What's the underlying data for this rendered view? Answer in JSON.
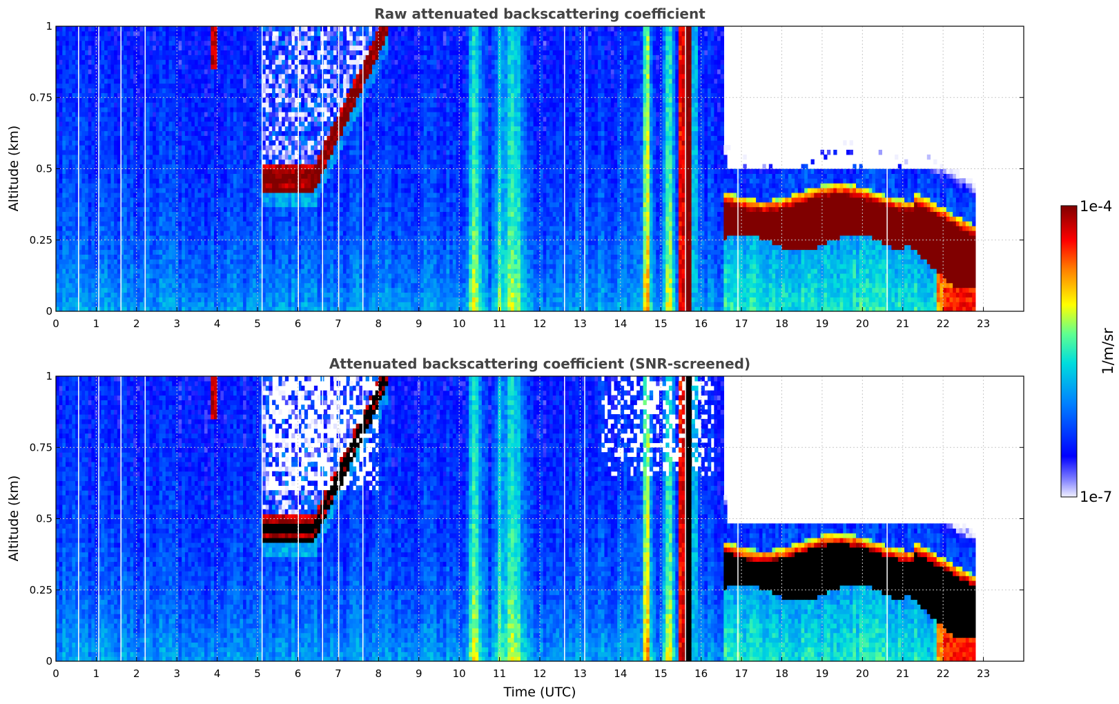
{
  "chart_data": [
    {
      "type": "heatmap",
      "title": "Raw attenuated backscattering coefficient",
      "xlabel": "",
      "ylabel": "Altitude (km)",
      "xlim": [
        0,
        24
      ],
      "ylim": [
        0,
        1
      ],
      "x_ticks": [
        "0",
        "1",
        "2",
        "3",
        "4",
        "5",
        "6",
        "7",
        "8",
        "9",
        "10",
        "11",
        "12",
        "13",
        "14",
        "15",
        "16",
        "17",
        "18",
        "19",
        "20",
        "21",
        "22",
        "23"
      ],
      "y_ticks": [
        "0",
        "0.25",
        "0.5",
        "0.75",
        "1"
      ],
      "grid": true,
      "data_end_hour": 22.8,
      "features": [
        {
          "name": "rising cloud layer",
          "x_range": [
            5.1,
            8.2
          ],
          "altitude_km": [
            0.45,
            1.0
          ]
        },
        {
          "name": "fog column",
          "x_range": [
            15.4,
            15.8
          ],
          "altitude_km": [
            0,
            1.0
          ]
        },
        {
          "name": "stratus cloud layer",
          "x_range": [
            16.6,
            22.8
          ],
          "base_km": [
            0.22,
            0.05
          ],
          "top_km": [
            0.42,
            0.3
          ]
        }
      ]
    },
    {
      "type": "heatmap",
      "title": "Attenuated backscattering coefficient (SNR-screened)",
      "xlabel": "Time (UTC)",
      "ylabel": "Altitude (km)",
      "xlim": [
        0,
        24
      ],
      "ylim": [
        0,
        1
      ],
      "x_ticks": [
        "0",
        "1",
        "2",
        "3",
        "4",
        "5",
        "6",
        "7",
        "8",
        "9",
        "10",
        "11",
        "12",
        "13",
        "14",
        "15",
        "16",
        "17",
        "18",
        "19",
        "20",
        "21",
        "22",
        "23"
      ],
      "y_ticks": [
        "0",
        "0.25",
        "0.5",
        "0.75",
        "1"
      ],
      "grid": true,
      "data_end_hour": 22.8,
      "features": [
        {
          "name": "rising cloud layer",
          "x_range": [
            5.1,
            8.2
          ],
          "altitude_km": [
            0.45,
            1.0
          ]
        },
        {
          "name": "fog column",
          "x_range": [
            15.4,
            15.8
          ],
          "altitude_km": [
            0,
            1.0
          ]
        },
        {
          "name": "stratus cloud layer",
          "x_range": [
            16.6,
            22.8
          ],
          "base_km": [
            0.22,
            0.05
          ],
          "top_km": [
            0.42,
            0.3
          ]
        }
      ]
    }
  ],
  "colorbar": {
    "label": "1/m/sr",
    "max_label": "1e-4",
    "min_label": "1e-7",
    "scale": "log",
    "colormap": [
      "#f0f0ff",
      "#0000ff",
      "#0080ff",
      "#00e0e0",
      "#80ff80",
      "#ffff00",
      "#ff8000",
      "#ff0000",
      "#800000"
    ]
  }
}
